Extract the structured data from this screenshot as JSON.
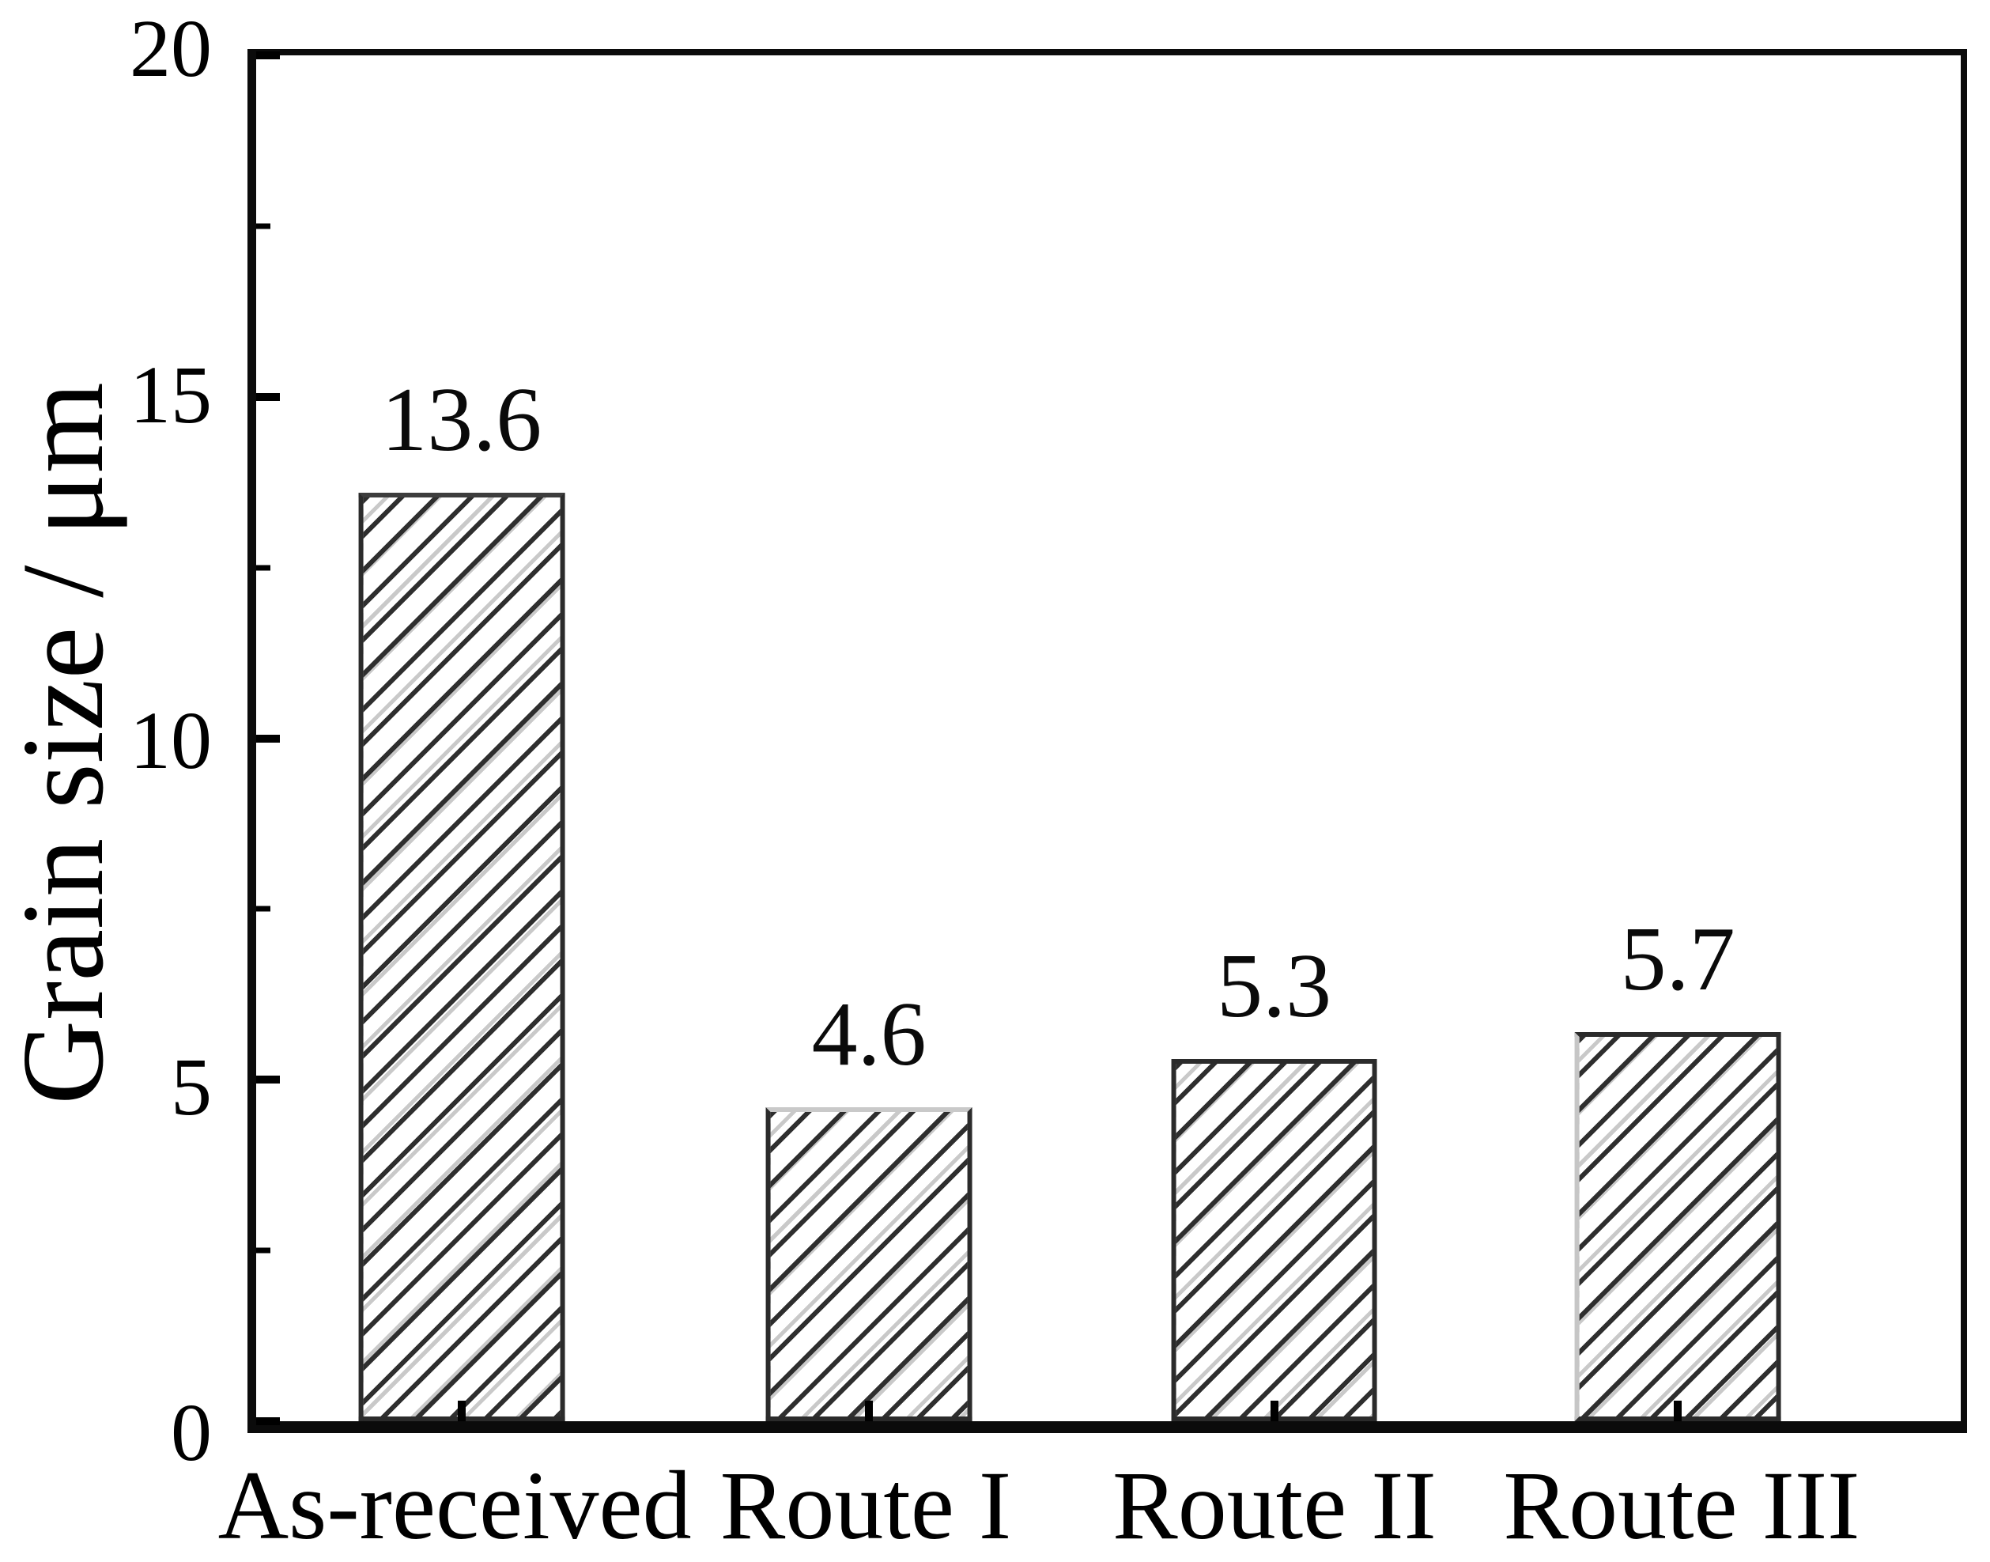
{
  "chart_data": {
    "type": "bar",
    "title": "",
    "xlabel": "",
    "ylabel": "Grain size / μm",
    "categories": [
      "As-received",
      "Route I",
      "Route II",
      "Route III"
    ],
    "values": [
      13.6,
      4.6,
      5.3,
      5.7
    ],
    "bar_value_labels": [
      "13.6",
      "4.6",
      "5.3",
      "5.7"
    ],
    "ylim": [
      0,
      20
    ],
    "yticks_major": [
      0,
      5,
      10,
      15,
      20
    ],
    "yticks_minor": [
      2.5,
      7.5,
      12.5,
      17.5
    ],
    "grid": false,
    "legend_position": "none",
    "bar_fill_color": "#ffffff",
    "bar_edge_color": "#2b2b2b",
    "hatch_style": "forward-diagonal",
    "hatch_color": "#2e2e2e",
    "axis_color": "#000000",
    "text_color": "#000000",
    "background_color": "#ffffff"
  }
}
